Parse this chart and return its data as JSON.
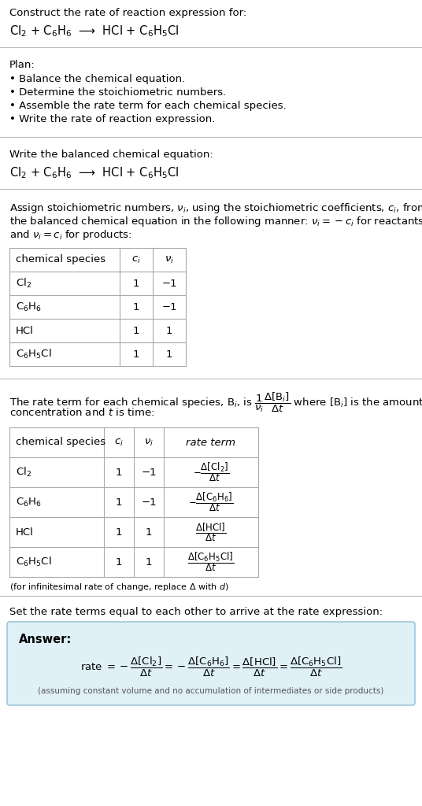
{
  "bg_color": "#ffffff",
  "answer_bg_color": "#dff0f7",
  "answer_border_color": "#a0c8dc",
  "text_color": "#000000",
  "gray_text": "#555555",
  "header_title": "Construct the rate of reaction expression for:",
  "header_eq": "Cl$_2$ + C$_6$H$_6$  ⟶  HCl + C$_6$H$_5$Cl",
  "plan_title": "Plan:",
  "plan_items": [
    "• Balance the chemical equation.",
    "• Determine the stoichiometric numbers.",
    "• Assemble the rate term for each chemical species.",
    "• Write the rate of reaction expression."
  ],
  "balanced_title": "Write the balanced chemical equation:",
  "balanced_eq": "Cl$_2$ + C$_6$H$_6$  ⟶  HCl + C$_6$H$_5$Cl",
  "stoich_lines": [
    "Assign stoichiometric numbers, $\\nu_i$, using the stoichiometric coefficients, $c_i$, from",
    "the balanced chemical equation in the following manner: $\\nu_i = -c_i$ for reactants",
    "and $\\nu_i = c_i$ for products:"
  ],
  "table1_headers": [
    "chemical species",
    "$c_i$",
    "$\\nu_i$"
  ],
  "table1_rows": [
    [
      "Cl$_2$",
      "1",
      "−1"
    ],
    [
      "C$_6$H$_6$",
      "1",
      "−1"
    ],
    [
      "HCl",
      "1",
      "1"
    ],
    [
      "C$_6$H$_5$Cl",
      "1",
      "1"
    ]
  ],
  "rate_lines": [
    "The rate term for each chemical species, B$_i$, is $\\dfrac{1}{\\nu_i}\\dfrac{\\Delta[\\mathrm{B}_i]}{\\Delta t}$ where [B$_i$] is the amount",
    "concentration and $t$ is time:"
  ],
  "table2_headers": [
    "chemical species",
    "$c_i$",
    "$\\nu_i$",
    "rate term"
  ],
  "table2_rows": [
    [
      "Cl$_2$",
      "1",
      "−1",
      "$-\\dfrac{\\Delta[\\mathrm{Cl_2}]}{\\Delta t}$"
    ],
    [
      "C$_6$H$_6$",
      "1",
      "−1",
      "$-\\dfrac{\\Delta[\\mathrm{C_6H_6}]}{\\Delta t}$"
    ],
    [
      "HCl",
      "1",
      "1",
      "$\\dfrac{\\Delta[\\mathrm{HCl}]}{\\Delta t}$"
    ],
    [
      "C$_6$H$_5$Cl",
      "1",
      "1",
      "$\\dfrac{\\Delta[\\mathrm{C_6H_5Cl}]}{\\Delta t}$"
    ]
  ],
  "note_infinitesimal": "(for infinitesimal rate of change, replace Δ with $d$)",
  "set_equal_text": "Set the rate terms equal to each other to arrive at the rate expression:",
  "answer_label": "Answer:",
  "answer_formula": "rate $= -\\dfrac{\\Delta[\\mathrm{Cl_2}]}{\\Delta t} = -\\dfrac{\\Delta[\\mathrm{C_6H_6}]}{\\Delta t} = \\dfrac{\\Delta[\\mathrm{HCl}]}{\\Delta t} = \\dfrac{\\Delta[\\mathrm{C_6H_5Cl}]}{\\Delta t}$",
  "answer_note": "(assuming constant volume and no accumulation of intermediates or side products)"
}
